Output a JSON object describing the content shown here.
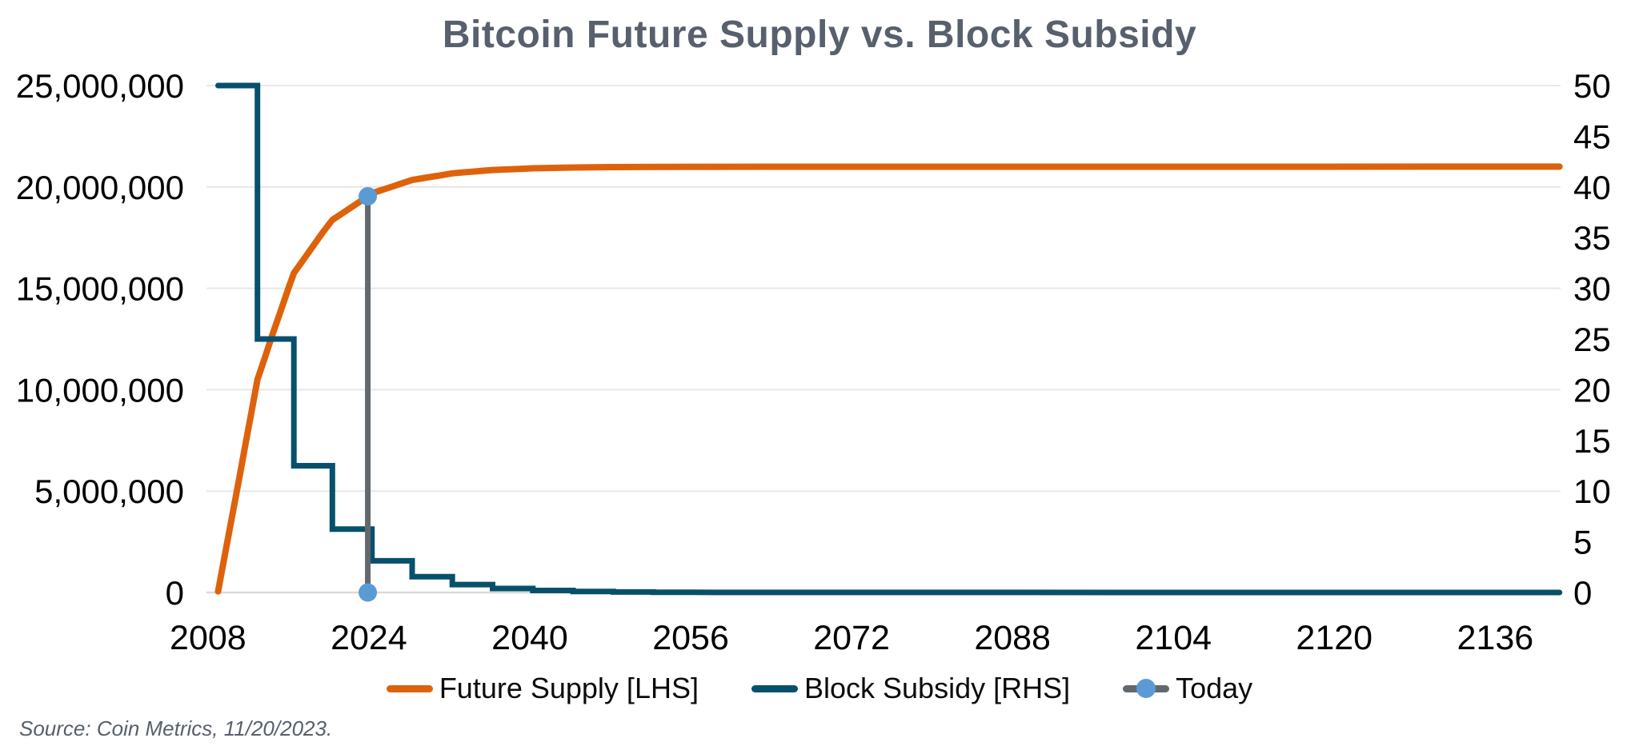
{
  "title": "Bitcoin Future Supply vs. Block Subsidy",
  "source_note": "Source: Coin Metrics, 11/20/2023.",
  "colors": {
    "future_supply": "#DE620C",
    "block_subsidy": "#07506C",
    "today_line": "#63686D",
    "today_dot": "#5B9BD5",
    "gridline": "#E7E7E7",
    "baseline": "#D9D9D9",
    "title_text": "#57606C",
    "axis_text": "#000000"
  },
  "legend": {
    "items": [
      {
        "id": "future-supply",
        "label": "Future Supply [LHS]",
        "swatch": "line",
        "color": "#DE620C"
      },
      {
        "id": "block-subsidy",
        "label": "Block Subsidy [RHS]",
        "swatch": "line",
        "color": "#07506C"
      },
      {
        "id": "today",
        "label": "Today",
        "swatch": "line-dot",
        "color": "#63686D",
        "dot_color": "#5B9BD5"
      }
    ]
  },
  "chart_data": {
    "type": "line",
    "title": "Bitcoin Future Supply vs. Block Subsidy",
    "grid": "horizontal-only",
    "legend_position": "bottom",
    "x_axis": {
      "min": 2007.85,
      "max": 2142.5,
      "ticks": [
        {
          "value": 2008,
          "label": "2008"
        },
        {
          "value": 2024,
          "label": "2024"
        },
        {
          "value": 2040,
          "label": "2040"
        },
        {
          "value": 2056,
          "label": "2056"
        },
        {
          "value": 2072,
          "label": "2072"
        },
        {
          "value": 2088,
          "label": "2088"
        },
        {
          "value": 2104,
          "label": "2104"
        },
        {
          "value": 2120,
          "label": "2120"
        },
        {
          "value": 2136,
          "label": "2136"
        }
      ]
    },
    "y_left": {
      "min": 0,
      "max": 25000000,
      "ticks": [
        {
          "value": 25000000,
          "label": "25,000,000"
        },
        {
          "value": 20000000,
          "label": "20,000,000"
        },
        {
          "value": 15000000,
          "label": "15,000,000"
        },
        {
          "value": 10000000,
          "label": "10,000,000"
        },
        {
          "value": 5000000,
          "label": "5,000,000"
        },
        {
          "value": 0,
          "label": "0"
        }
      ]
    },
    "y_right": {
      "min": 0,
      "max": 50,
      "ticks": [
        {
          "value": 50,
          "label": "50"
        },
        {
          "value": 45,
          "label": "45"
        },
        {
          "value": 40,
          "label": "40"
        },
        {
          "value": 35,
          "label": "35"
        },
        {
          "value": 30,
          "label": "30"
        },
        {
          "value": 25,
          "label": "25"
        },
        {
          "value": 20,
          "label": "20"
        },
        {
          "value": 15,
          "label": "15"
        },
        {
          "value": 10,
          "label": "10"
        },
        {
          "value": 5,
          "label": "5"
        },
        {
          "value": 0,
          "label": "0"
        }
      ]
    },
    "series": [
      {
        "name": "Future Supply [LHS]",
        "axis": "left",
        "color": "#DE620C",
        "stroke_width": 8,
        "points": [
          [
            2009.0,
            50000
          ],
          [
            2009.7,
            1900000
          ],
          [
            2010.4,
            3750000
          ],
          [
            2011.1,
            5600000
          ],
          [
            2011.8,
            7500000
          ],
          [
            2012.4,
            9100000
          ],
          [
            2012.92,
            10500000
          ],
          [
            2013.6,
            11500000
          ],
          [
            2014.4,
            12700000
          ],
          [
            2015.2,
            13850000
          ],
          [
            2016.0,
            15000000
          ],
          [
            2016.54,
            15750000
          ],
          [
            2017.4,
            16350000
          ],
          [
            2018.4,
            17050000
          ],
          [
            2019.4,
            17750000
          ],
          [
            2020.37,
            18375000
          ],
          [
            2021.4,
            18715000
          ],
          [
            2022.6,
            19110000
          ],
          [
            2023.89,
            19540000
          ],
          [
            2024.3,
            19687500
          ],
          [
            2025.3,
            19850000
          ],
          [
            2026.3,
            20010000
          ],
          [
            2027.3,
            20180000
          ],
          [
            2028.3,
            20343750
          ],
          [
            2029.3,
            20425000
          ],
          [
            2030.3,
            20507000
          ],
          [
            2031.3,
            20589000
          ],
          [
            2032.3,
            20671875
          ],
          [
            2033.3,
            20713000
          ],
          [
            2034.3,
            20754000
          ],
          [
            2035.3,
            20795000
          ],
          [
            2036.3,
            20835938
          ],
          [
            2037.3,
            20856000
          ],
          [
            2038.3,
            20877000
          ],
          [
            2040.3,
            20917969
          ],
          [
            2042.3,
            20938000
          ],
          [
            2044.3,
            20958984
          ],
          [
            2048.3,
            20979492
          ],
          [
            2052.3,
            20989746
          ],
          [
            2056.3,
            20994873
          ],
          [
            2064.3,
            20998000
          ],
          [
            2080.0,
            20999500
          ],
          [
            2142.4,
            21000000
          ]
        ]
      },
      {
        "name": "Block Subsidy [RHS]",
        "axis": "right",
        "color": "#07506C",
        "stroke_width": 7,
        "points": [
          [
            2009.0,
            50
          ],
          [
            2012.92,
            50
          ],
          [
            2012.92,
            25
          ],
          [
            2016.54,
            25
          ],
          [
            2016.54,
            12.5
          ],
          [
            2020.37,
            12.5
          ],
          [
            2020.37,
            6.25
          ],
          [
            2024.3,
            6.25
          ],
          [
            2024.3,
            3.125
          ],
          [
            2028.3,
            3.125
          ],
          [
            2028.3,
            1.5625
          ],
          [
            2032.3,
            1.5625
          ],
          [
            2032.3,
            0.78125
          ],
          [
            2036.3,
            0.78125
          ],
          [
            2036.3,
            0.390625
          ],
          [
            2040.3,
            0.390625
          ],
          [
            2040.3,
            0.1953125
          ],
          [
            2044.3,
            0.1953125
          ],
          [
            2044.3,
            0.09765625
          ],
          [
            2048.3,
            0.09765625
          ],
          [
            2048.3,
            0.048828125
          ],
          [
            2052.3,
            0.048828125
          ],
          [
            2052.3,
            0.024
          ],
          [
            2056.3,
            0.012
          ],
          [
            2060.3,
            0.006
          ],
          [
            2142.4,
            0
          ]
        ]
      }
    ],
    "today_marker": {
      "label": "Today",
      "year": 2023.89,
      "supply_btc": 19540000,
      "subsidy_at_axis": 0,
      "line_color": "#63686D",
      "dot_color": "#5B9BD5"
    }
  }
}
